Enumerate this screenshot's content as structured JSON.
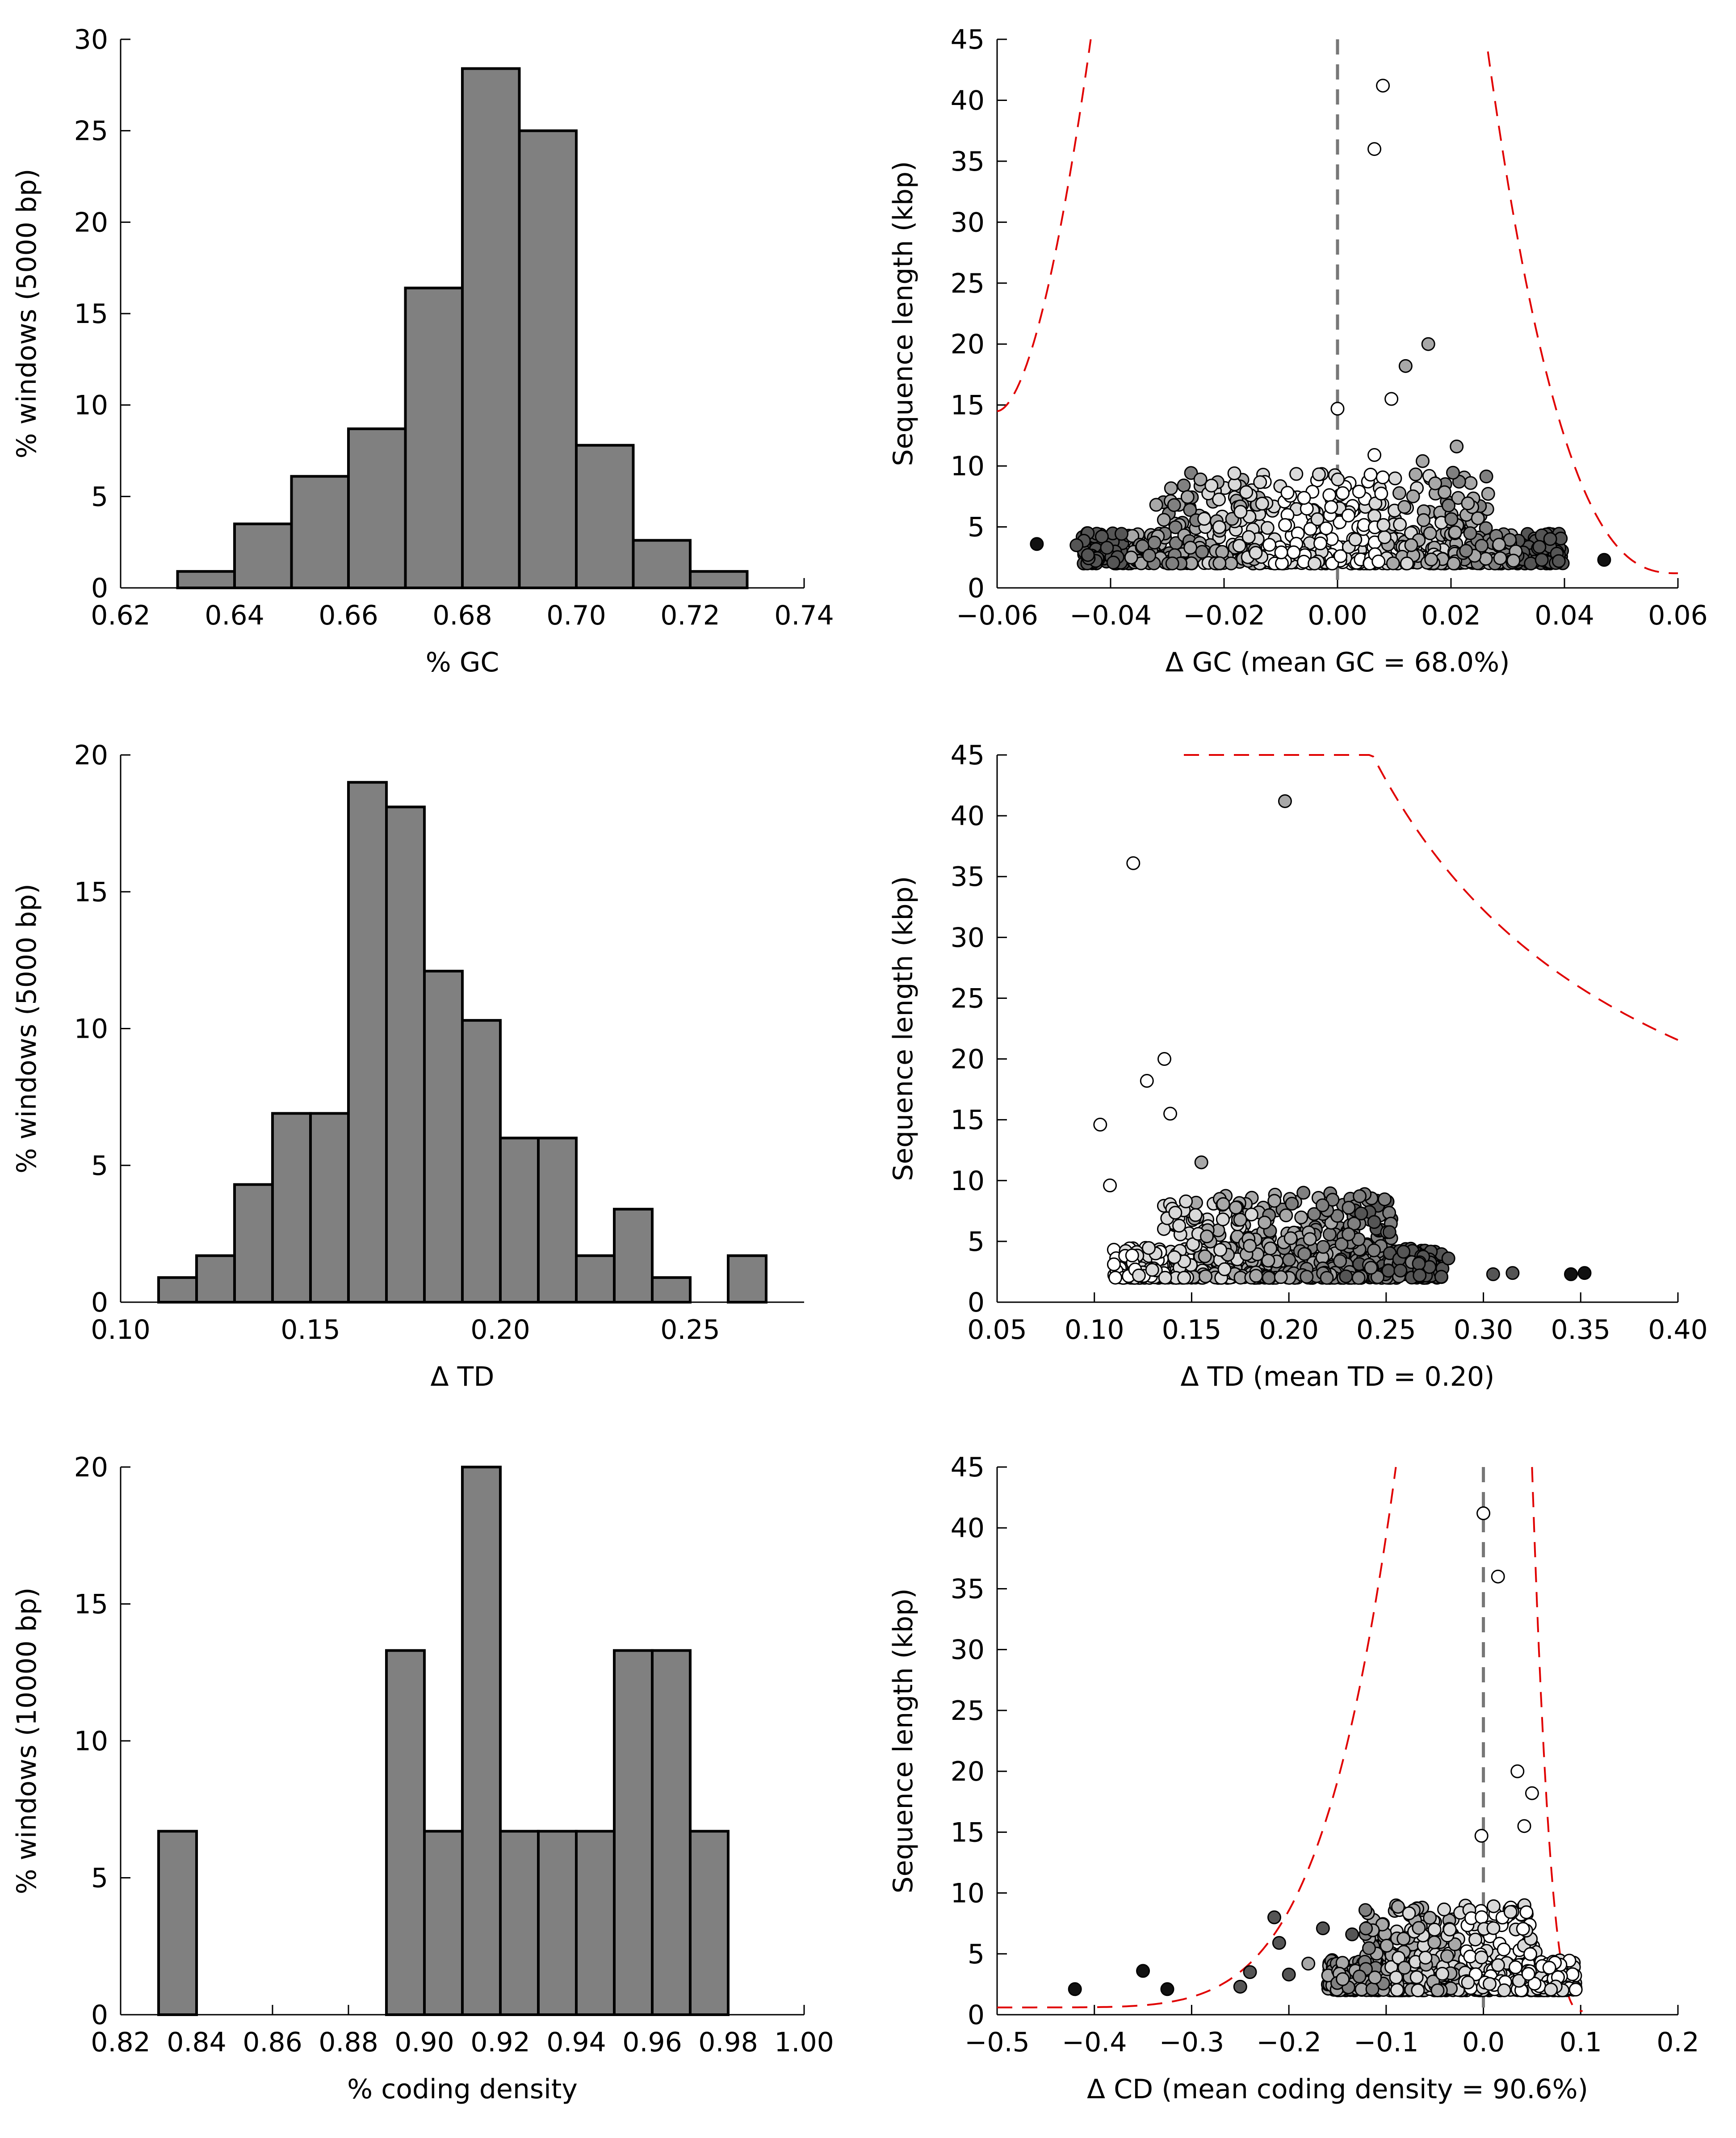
{
  "chart_data": [
    {
      "id": "gc-hist",
      "type": "bar",
      "xlabel": "% GC",
      "ylabel": "% windows (5000 bp)",
      "xlim": [
        0.62,
        0.74
      ],
      "ylim": [
        0,
        30
      ],
      "xticks": [
        "0.62",
        "0.64",
        "0.66",
        "0.68",
        "0.70",
        "0.72",
        "0.74"
      ],
      "yticks": [
        "0",
        "5",
        "10",
        "15",
        "20",
        "25",
        "30"
      ],
      "bin_width": 0.01,
      "bins": [
        0.63,
        0.64,
        0.65,
        0.66,
        0.67,
        0.68,
        0.69,
        0.7,
        0.71,
        0.72
      ],
      "values": [
        0.9,
        3.5,
        6.1,
        8.7,
        16.4,
        28.4,
        25.0,
        7.8,
        2.6,
        0.9
      ]
    },
    {
      "id": "gc-scatter",
      "type": "scatter",
      "xlabel": "Δ GC (mean GC = 68.0%)",
      "ylabel": "Sequence length (kbp)",
      "xlim": [
        -0.06,
        0.06
      ],
      "ylim": [
        0,
        45
      ],
      "xticks": [
        "−0.06",
        "−0.04",
        "−0.02",
        "0.00",
        "0.02",
        "0.04",
        "0.06"
      ],
      "yticks": [
        "0",
        "5",
        "10",
        "15",
        "20",
        "25",
        "30",
        "35",
        "40",
        "45"
      ],
      "vline": 0,
      "notable_points": [
        {
          "x": 0.008,
          "y": 41.2,
          "shade": "#ffffff"
        },
        {
          "x": 0.0065,
          "y": 36.0,
          "shade": "#ffffff"
        },
        {
          "x": 0.016,
          "y": 20.0,
          "shade": "#a8a8a8"
        },
        {
          "x": 0.012,
          "y": 18.2,
          "shade": "#a8a8a8"
        },
        {
          "x": 0.0095,
          "y": 15.5,
          "shade": "#ffffff"
        },
        {
          "x": 0.0,
          "y": 14.7,
          "shade": "#ffffff"
        },
        {
          "x": 0.021,
          "y": 11.6,
          "shade": "#a8a8a8"
        },
        {
          "x": 0.015,
          "y": 10.4,
          "shade": "#a8a8a8"
        },
        {
          "x": 0.0065,
          "y": 10.9,
          "shade": "#ffffff"
        },
        {
          "x": -0.053,
          "y": 3.6,
          "shade": "#111111"
        },
        {
          "x": 0.047,
          "y": 2.3,
          "shade": "#111111"
        },
        {
          "x": -0.046,
          "y": 3.5,
          "shade": "#555555"
        },
        {
          "x": -0.044,
          "y": 2.7,
          "shade": "#555555"
        },
        {
          "x": 0.039,
          "y": 2.2,
          "shade": "#555555"
        },
        {
          "x": 0.036,
          "y": 2.3,
          "shade": "#555555"
        }
      ],
      "cloud": {
        "x_range": [
          -0.045,
          0.04
        ],
        "y_range": [
          2.0,
          9.5
        ],
        "count": 760
      },
      "threshold_curve": "reciprocal"
    },
    {
      "id": "td-hist",
      "type": "bar",
      "xlabel": "Δ TD",
      "ylabel": "% windows (5000 bp)",
      "xlim": [
        0.1,
        0.28
      ],
      "ylim": [
        0,
        20
      ],
      "xticks": [
        "0.10",
        "0.15",
        "0.20",
        "0.25"
      ],
      "yticks": [
        "0",
        "5",
        "10",
        "15",
        "20"
      ],
      "bin_width": 0.01,
      "bins": [
        0.11,
        0.12,
        0.13,
        0.14,
        0.15,
        0.16,
        0.17,
        0.18,
        0.19,
        0.2,
        0.21,
        0.22,
        0.23,
        0.24,
        0.25,
        0.26
      ],
      "values": [
        0.9,
        1.7,
        4.3,
        6.9,
        6.9,
        19.0,
        18.1,
        12.1,
        10.3,
        6.0,
        6.0,
        1.7,
        3.4,
        0.9,
        0,
        1.7
      ]
    },
    {
      "id": "td-scatter",
      "type": "scatter",
      "xlabel": "Δ TD (mean TD = 0.20)",
      "ylabel": "Sequence length (kbp)",
      "xlim": [
        0.05,
        0.4
      ],
      "ylim": [
        0,
        45
      ],
      "xticks": [
        "0.05",
        "0.10",
        "0.15",
        "0.20",
        "0.25",
        "0.30",
        "0.35",
        "0.40"
      ],
      "yticks": [
        "0",
        "5",
        "10",
        "15",
        "20",
        "25",
        "30",
        "35",
        "40",
        "45"
      ],
      "notable_points": [
        {
          "x": 0.198,
          "y": 41.2,
          "shade": "#a8a8a8"
        },
        {
          "x": 0.12,
          "y": 36.1,
          "shade": "#ffffff"
        },
        {
          "x": 0.136,
          "y": 20.0,
          "shade": "#ffffff"
        },
        {
          "x": 0.127,
          "y": 18.2,
          "shade": "#ffffff"
        },
        {
          "x": 0.139,
          "y": 15.5,
          "shade": "#ffffff"
        },
        {
          "x": 0.103,
          "y": 14.6,
          "shade": "#ffffff"
        },
        {
          "x": 0.108,
          "y": 9.6,
          "shade": "#ffffff"
        },
        {
          "x": 0.155,
          "y": 11.5,
          "shade": "#a8a8a8"
        },
        {
          "x": 0.345,
          "y": 2.3,
          "shade": "#111111"
        },
        {
          "x": 0.352,
          "y": 2.4,
          "shade": "#111111"
        },
        {
          "x": 0.315,
          "y": 2.4,
          "shade": "#555555"
        },
        {
          "x": 0.305,
          "y": 2.3,
          "shade": "#555555"
        },
        {
          "x": 0.282,
          "y": 3.6,
          "shade": "#555555"
        }
      ],
      "cloud": {
        "x_range": [
          0.11,
          0.28
        ],
        "y_range": [
          2.0,
          9.0
        ],
        "count": 760
      },
      "threshold_curve": "reciprocal"
    },
    {
      "id": "cd-hist",
      "type": "bar",
      "xlabel": "% coding density",
      "ylabel": "% windows (10000 bp)",
      "xlim": [
        0.82,
        1.0
      ],
      "ylim": [
        0,
        20
      ],
      "xticks": [
        "0.82",
        "0.84",
        "0.86",
        "0.88",
        "0.90",
        "0.92",
        "0.94",
        "0.96",
        "0.98",
        "1.00"
      ],
      "yticks": [
        "0",
        "5",
        "10",
        "15",
        "20"
      ],
      "bin_width": 0.01,
      "bins": [
        0.83,
        0.89,
        0.9,
        0.91,
        0.92,
        0.93,
        0.94,
        0.95,
        0.96,
        0.97
      ],
      "values": [
        6.7,
        13.3,
        6.7,
        20.0,
        6.7,
        6.7,
        6.7,
        13.3,
        13.3,
        6.7
      ]
    },
    {
      "id": "cd-scatter",
      "type": "scatter",
      "xlabel": "Δ CD (mean coding density = 90.6%)",
      "ylabel": "Sequence length (kbp)",
      "xlim": [
        -0.5,
        0.2
      ],
      "ylim": [
        0,
        45
      ],
      "xticks": [
        "−0.5",
        "−0.4",
        "−0.3",
        "−0.2",
        "−0.1",
        "0.0",
        "0.1",
        "0.2"
      ],
      "yticks": [
        "0",
        "5",
        "10",
        "15",
        "20",
        "25",
        "30",
        "35",
        "40",
        "45"
      ],
      "vline": 0,
      "notable_points": [
        {
          "x": 0.0,
          "y": 41.2,
          "shade": "#ffffff"
        },
        {
          "x": 0.015,
          "y": 36.0,
          "shade": "#ffffff"
        },
        {
          "x": 0.035,
          "y": 20.0,
          "shade": "#ffffff"
        },
        {
          "x": 0.05,
          "y": 18.2,
          "shade": "#ffffff"
        },
        {
          "x": 0.042,
          "y": 15.5,
          "shade": "#ffffff"
        },
        {
          "x": -0.002,
          "y": 14.7,
          "shade": "#ffffff"
        },
        {
          "x": -0.42,
          "y": 2.1,
          "shade": "#111111"
        },
        {
          "x": -0.35,
          "y": 3.6,
          "shade": "#111111"
        },
        {
          "x": -0.325,
          "y": 2.1,
          "shade": "#111111"
        },
        {
          "x": -0.25,
          "y": 2.3,
          "shade": "#555555"
        },
        {
          "x": -0.24,
          "y": 3.5,
          "shade": "#555555"
        },
        {
          "x": -0.215,
          "y": 8.0,
          "shade": "#555555"
        },
        {
          "x": -0.21,
          "y": 5.9,
          "shade": "#555555"
        },
        {
          "x": -0.2,
          "y": 3.3,
          "shade": "#555555"
        },
        {
          "x": -0.165,
          "y": 7.1,
          "shade": "#555555"
        },
        {
          "x": -0.135,
          "y": 6.6,
          "shade": "#555555"
        },
        {
          "x": -0.18,
          "y": 4.2,
          "shade": "#a8a8a8"
        }
      ],
      "cloud": {
        "x_range": [
          -0.16,
          0.095
        ],
        "y_range": [
          2.0,
          9.0
        ],
        "count": 760
      },
      "threshold_curve": "reciprocal"
    }
  ]
}
